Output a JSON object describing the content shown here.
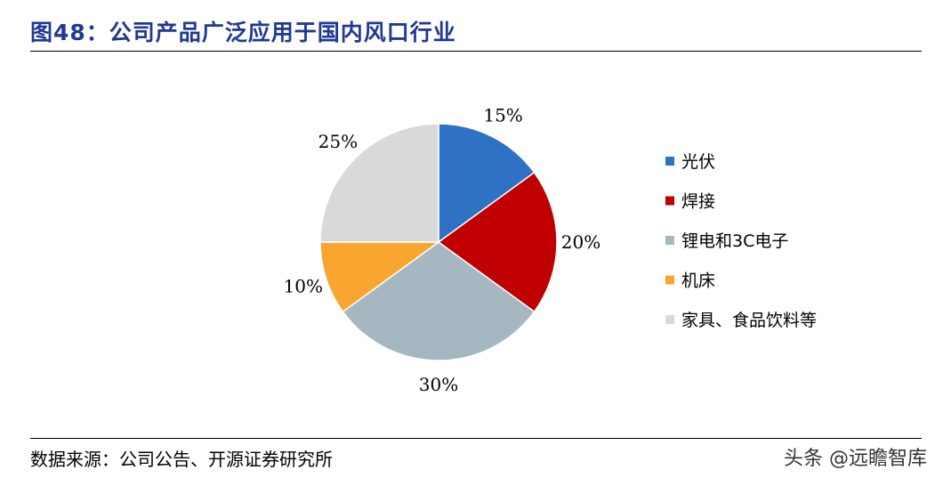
{
  "figure_title": "图48：公司产品广泛应用于国内风口行业",
  "source": "数据来源：公司公告、开源证券研究所",
  "watermark": "头条 @远瞻智库",
  "chart_data": {
    "type": "pie",
    "title": "",
    "categories": [
      "光伏",
      "焊接",
      "锂电和3C电子",
      "机床",
      "家具、食品饮料等"
    ],
    "values": [
      15,
      20,
      30,
      10,
      25
    ],
    "labels": [
      "15%",
      "20%",
      "30%",
      "10%",
      "25%"
    ],
    "colors": [
      "#2f72c4",
      "#c00000",
      "#a5b7c0",
      "#f8a630",
      "#d9d9d9"
    ],
    "legend_position": "right"
  }
}
